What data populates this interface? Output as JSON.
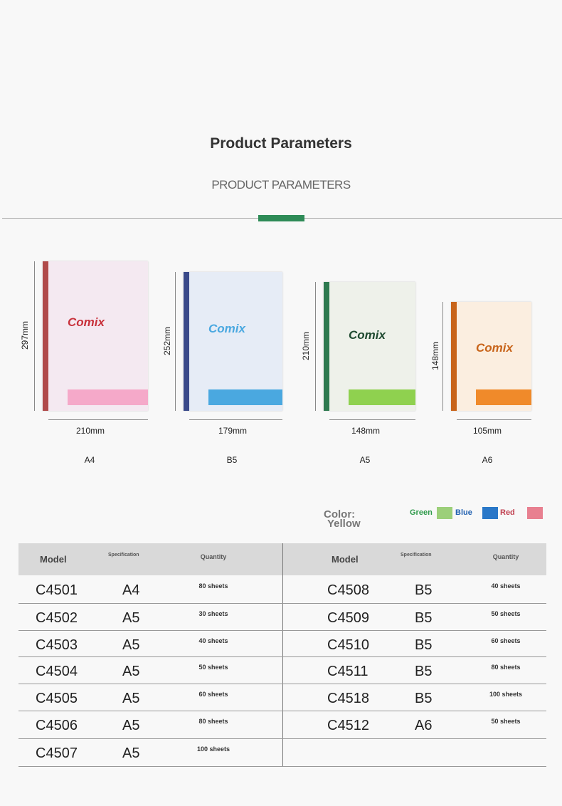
{
  "header": {
    "title": "Product Parameters",
    "subtitle": "PRODUCT PARAMETERS"
  },
  "notebooks": [
    {
      "brand": "Comix",
      "height": "297mm",
      "width": "210mm",
      "size": "A4"
    },
    {
      "brand": "Comix",
      "height": "252mm",
      "width": "179mm",
      "size": "B5"
    },
    {
      "brand": "Comix",
      "height": "210mm",
      "width": "148mm",
      "size": "A5"
    },
    {
      "brand": "Comix",
      "height": "148mm",
      "width": "105mm",
      "size": "A6"
    }
  ],
  "colors": {
    "label": "Color:",
    "options": [
      "Yellow",
      "Green",
      "Blue",
      "Red"
    ]
  },
  "table": {
    "columns": [
      "Model",
      "Specification",
      "Quantity"
    ],
    "left": [
      [
        "C4501",
        "A4",
        "80 sheets"
      ],
      [
        "C4502",
        "A5",
        "30 sheets"
      ],
      [
        "C4503",
        "A5",
        "40 sheets"
      ],
      [
        "C4504",
        "A5",
        "50 sheets"
      ],
      [
        "C4505",
        "A5",
        "60 sheets"
      ],
      [
        "C4506",
        "A5",
        "80 sheets"
      ],
      [
        "C4507",
        "A5",
        "100 sheets"
      ]
    ],
    "right": [
      [
        "C4508",
        "B5",
        "40 sheets"
      ],
      [
        "C4509",
        "B5",
        "50 sheets"
      ],
      [
        "C4510",
        "B5",
        "60 sheets"
      ],
      [
        "C4511",
        "B5",
        "80 sheets"
      ],
      [
        "C4518",
        "B5",
        "100 sheets"
      ],
      [
        "C4512",
        "A6",
        "50 sheets"
      ]
    ]
  }
}
